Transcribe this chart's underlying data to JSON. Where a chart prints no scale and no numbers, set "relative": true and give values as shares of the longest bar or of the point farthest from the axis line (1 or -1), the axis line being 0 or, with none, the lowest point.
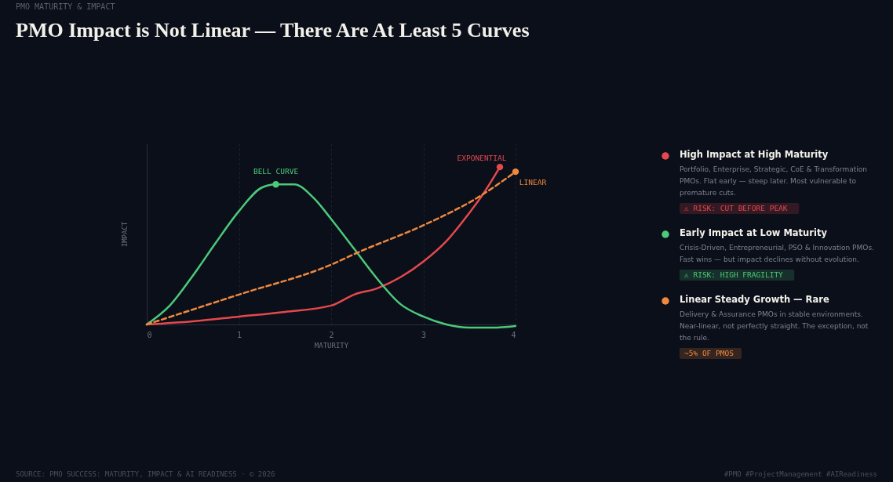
{
  "chart_data": {
    "type": "line",
    "title": "PMO Impact is Not Linear — There Are At Least 5 Curves",
    "subtitle": "PMO MATURITY & IMPACT",
    "xlabel": "MATURITY",
    "ylabel": "IMPACT",
    "relative": true,
    "xlim": [
      0,
      4
    ],
    "xticks": [
      0,
      1,
      2,
      3,
      4
    ],
    "grid": "x",
    "legend": "right",
    "marker": "none",
    "series": [
      {
        "name": "High Impact at High Maturity",
        "color": "#e5484d",
        "x": [
          0,
          0.5,
          1,
          1.5,
          2,
          2.25,
          2.5,
          2.75,
          3,
          3.25,
          3.5,
          3.65,
          3.83
        ],
        "values": [
          0,
          0.02,
          0.05,
          0.08,
          0.12,
          0.19,
          0.23,
          0.3,
          0.4,
          0.53,
          0.71,
          0.83,
          1
        ]
      },
      {
        "name": "Early Impact at Low Maturity",
        "color": "#4cc97a",
        "x": [
          0,
          0.25,
          0.5,
          0.75,
          1,
          1.25,
          1.4,
          1.6,
          1.8,
          2,
          2.25,
          2.5,
          2.75,
          3,
          3.25,
          3.5,
          3.75,
          4
        ],
        "values": [
          0,
          0.12,
          0.31,
          0.52,
          0.72,
          0.87,
          0.89,
          0.89,
          0.81,
          0.67,
          0.48,
          0.29,
          0.13,
          0.05,
          0,
          -0.02,
          -0.02,
          -0.01
        ]
      },
      {
        "name": "Linear Steady Growth — Rare",
        "color": "#f0883e",
        "line_style": "dashed",
        "x": [
          0,
          1,
          2,
          2.3,
          3,
          3.6,
          4
        ],
        "values": [
          0,
          0.19,
          0.38,
          0.46,
          0.63,
          0.81,
          0.97
        ]
      }
    ],
    "annotations": [
      "Portfolio, Enterprise, Strategic, CoE & Transformation PMOs. Flat early — steep later. Most vulnerable to premature cuts.",
      "⚠ RISK: CUT BEFORE PEAK",
      "Crisis-Driven, Entrepreneurial, PSO & Innovation PMOs. Fast wins — but impact declines without evolution.",
      "⚠ RISK: HIGH FRAGILITY",
      "Delivery & Assurance PMOs in stable environments. Near-linear, not perfectly straight. The exception, not the rule.",
      "~5% OF PMOS",
      "SOURCE: PMO SUCCESS: MATURITY, IMPACT & AI READINESS · © 2026",
      "#PMO #ProjectManagement #AIReadiness",
      {
        "text": "EXPONENTIAL",
        "x": 3.83,
        "y": 1
      },
      {
        "text": "BELL CURVE",
        "x": 1.4,
        "y": 0.89
      },
      {
        "text": "LINEAR",
        "x": 4,
        "y": 0.97
      }
    ]
  }
}
